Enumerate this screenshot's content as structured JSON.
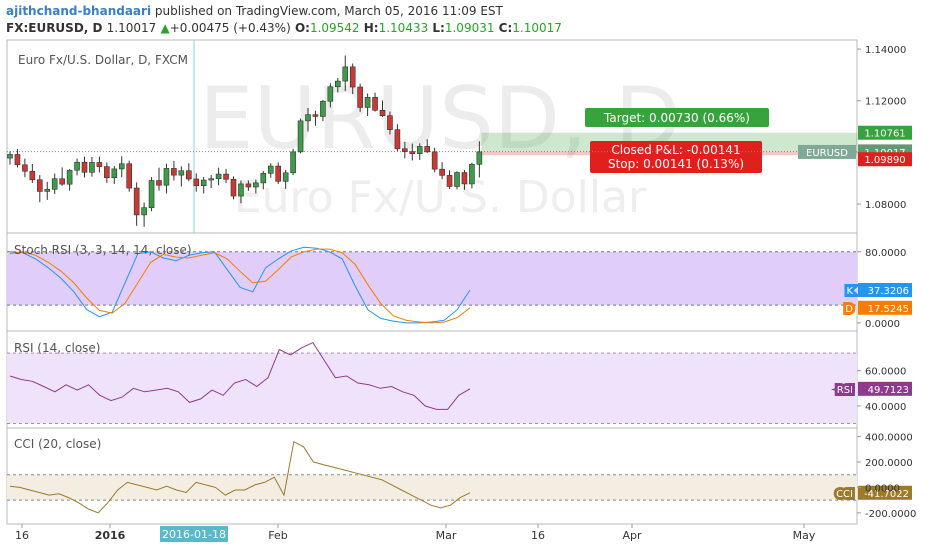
{
  "header": {
    "author": "ajithchand-bhandaari",
    "published": "published on TradingView.com, March 05, 2016 11:09 EST",
    "symbol": "FX:EURUSD, D",
    "last": "1.10017",
    "change_arrow": "▲",
    "change": "+0.00475 (+0.43%)",
    "o_label": "O:",
    "o_value": "1.09542",
    "h_label": "H:",
    "h_value": "1.10433",
    "l_label": "L:",
    "l_value": "1.09031",
    "c_label": "C:",
    "c_value": "1.10017"
  },
  "colors": {
    "bull": "#3d9b4a",
    "bear": "#c83a36",
    "stoch_k": "#4e9ee6",
    "stoch_d": "#f2764a",
    "rsi": "#8e3a8e",
    "cci": "#a8966a",
    "target": "#37a33d",
    "stop": "#e0201c",
    "band_fill": "#e4d3fb"
  },
  "chart_data": [
    {
      "type": "candlestick",
      "title": "Euro Fx/U.S. Dollar, D, FXCM",
      "watermark": "EURUSD, D",
      "watermark_sub": "Euro Fx/U.S. Dollar",
      "x_ticks": [
        "16",
        "2016",
        "2016-01-18",
        "Feb",
        "Mar",
        "16",
        "Apr",
        "May"
      ],
      "y_ticks": [
        "1.14000",
        "1.12000",
        "1.10000",
        "1.08000"
      ],
      "ylim": [
        1.0688,
        1.1435
      ],
      "price_labels": [
        {
          "text": "1.10761",
          "value": 1.10761,
          "color": "#37a33d"
        },
        {
          "text": "1.10031",
          "value": 1.10031,
          "color": "#444444"
        },
        {
          "text": "1.10017",
          "value": 1.10017,
          "color": "#5d9b72"
        },
        {
          "text": "1.09890",
          "value": 1.0989,
          "color": "#e0201c"
        }
      ],
      "symbol_label": "EURUSD",
      "position": {
        "entry": 1.10031,
        "target": 1.10761,
        "stop": 1.0989,
        "target_text": "Target: 0.00730 (0.66%)",
        "pnl_text": "Closed P&L: -0.00141",
        "stop_text": "Stop: 0.00141 (0.13%)"
      },
      "ohlc": [
        [
          1.0978,
          1.1004,
          1.0953,
          1.0992
        ],
        [
          1.0992,
          1.1013,
          1.0942,
          1.0952
        ],
        [
          1.0952,
          1.0976,
          1.0904,
          1.0927
        ],
        [
          1.0927,
          1.0955,
          1.0882,
          1.0894
        ],
        [
          1.0894,
          1.0912,
          1.0807,
          1.0849
        ],
        [
          1.0849,
          1.0886,
          1.0816,
          1.0857
        ],
        [
          1.0857,
          1.0918,
          1.0839,
          1.0898
        ],
        [
          1.0898,
          1.0942,
          1.0871,
          1.0877
        ],
        [
          1.0877,
          1.0935,
          1.0852,
          1.0931
        ],
        [
          1.0931,
          1.0976,
          1.0911,
          1.0962
        ],
        [
          1.0962,
          1.0983,
          1.0903,
          1.0923
        ],
        [
          1.0923,
          1.0982,
          1.0906,
          1.0961
        ],
        [
          1.0961,
          1.0984,
          1.0922,
          1.0945
        ],
        [
          1.0945,
          1.0961,
          1.0882,
          1.0902
        ],
        [
          1.0902,
          1.0947,
          1.0878,
          1.0936
        ],
        [
          1.0936,
          1.0985,
          1.0904,
          1.0956
        ],
        [
          1.0956,
          1.0968,
          1.0848,
          1.0862
        ],
        [
          1.0862,
          1.0884,
          1.0716,
          1.0758
        ],
        [
          1.0758,
          1.0806,
          1.0712,
          1.0786
        ],
        [
          1.0786,
          1.0904,
          1.0772,
          1.0891
        ],
        [
          1.0891,
          1.0941,
          1.0852,
          1.0873
        ],
        [
          1.0873,
          1.0956,
          1.0841,
          1.0938
        ],
        [
          1.0938,
          1.0967,
          1.0891,
          1.0912
        ],
        [
          1.0912,
          1.0946,
          1.0868,
          1.0929
        ],
        [
          1.0929,
          1.0958,
          1.0888,
          1.0897
        ],
        [
          1.0897,
          1.0919,
          1.0848,
          1.0871
        ],
        [
          1.0871,
          1.0905,
          1.0841,
          1.0893
        ],
        [
          1.0893,
          1.0912,
          1.0862,
          1.0898
        ],
        [
          1.0898,
          1.0941,
          1.0873,
          1.0916
        ],
        [
          1.0916,
          1.0936,
          1.0881,
          1.0896
        ],
        [
          1.0896,
          1.0907,
          1.0818,
          1.0831
        ],
        [
          1.0831,
          1.0891,
          1.0803,
          1.0878
        ],
        [
          1.0878,
          1.0891,
          1.0851,
          1.0866
        ],
        [
          1.0866,
          1.0895,
          1.0841,
          1.0882
        ],
        [
          1.0882,
          1.0928,
          1.0857,
          1.0919
        ],
        [
          1.0919,
          1.0958,
          1.0902,
          1.0947
        ],
        [
          1.0947,
          1.0961,
          1.0878,
          1.0888
        ],
        [
          1.0888,
          1.0932,
          1.0859,
          1.0921
        ],
        [
          1.0921,
          1.1014,
          1.0912,
          1.1002
        ],
        [
          1.1002,
          1.1131,
          1.0996,
          1.1122
        ],
        [
          1.1122,
          1.1172,
          1.1081,
          1.1146
        ],
        [
          1.1146,
          1.1161,
          1.1103,
          1.1139
        ],
        [
          1.1139,
          1.1203,
          1.1121,
          1.1198
        ],
        [
          1.1198,
          1.1268,
          1.1174,
          1.1254
        ],
        [
          1.1254,
          1.1288,
          1.1232,
          1.1276
        ],
        [
          1.1276,
          1.1375,
          1.1237,
          1.1331
        ],
        [
          1.1331,
          1.1344,
          1.1226,
          1.1253
        ],
        [
          1.1253,
          1.1266,
          1.1157,
          1.1174
        ],
        [
          1.1174,
          1.1228,
          1.1141,
          1.1213
        ],
        [
          1.1213,
          1.1231,
          1.1158,
          1.1163
        ],
        [
          1.1163,
          1.1201,
          1.1137,
          1.1142
        ],
        [
          1.1142,
          1.1158,
          1.1069,
          1.1088
        ],
        [
          1.1088,
          1.1109,
          1.1005,
          1.1014
        ],
        [
          1.1014,
          1.1041,
          1.0977,
          1.1003
        ],
        [
          1.1003,
          1.1034,
          1.0969,
          1.0995
        ],
        [
          1.0995,
          1.1035,
          1.0971,
          1.1023
        ],
        [
          1.1023,
          1.1051,
          1.0998,
          1.1002
        ],
        [
          1.1002,
          1.1018,
          1.0923,
          1.0935
        ],
        [
          1.0935,
          1.0962,
          1.0896,
          1.0911
        ],
        [
          1.0911,
          1.0931,
          1.0858,
          1.0868
        ],
        [
          1.0868,
          1.0927,
          1.0857,
          1.0922
        ],
        [
          1.0922,
          1.0932,
          1.0855,
          1.0878
        ],
        [
          1.0878,
          1.096,
          1.0861,
          1.0954
        ],
        [
          1.0954,
          1.1043,
          1.0903,
          1.1002
        ]
      ]
    },
    {
      "type": "line",
      "title": "Stoch RSI (3, 3, 14, 14, close)",
      "y_ticks": [
        "80.0000",
        "0.0000"
      ],
      "ylim": [
        -8,
        100
      ],
      "band": [
        20,
        80
      ],
      "series": [
        {
          "name": "K",
          "value_label": "37.3206",
          "values": [
            80,
            79,
            72,
            62,
            50,
            35,
            15,
            7,
            12,
            45,
            78,
            80,
            73,
            70,
            76,
            79,
            80,
            60,
            40,
            35,
            62,
            72,
            81,
            85,
            84,
            80,
            72,
            42,
            15,
            5,
            2,
            0,
            0,
            1,
            3,
            15,
            37
          ]
        },
        {
          "name": "D",
          "value_label": "17.5245",
          "values": [
            78,
            80,
            76,
            68,
            58,
            45,
            28,
            14,
            11,
            22,
            45,
            68,
            77,
            74,
            73,
            76,
            79,
            72,
            58,
            45,
            47,
            60,
            74,
            80,
            83,
            83,
            79,
            66,
            43,
            22,
            8,
            3,
            1,
            0,
            1,
            6,
            17
          ]
        }
      ]
    },
    {
      "type": "line",
      "title": "RSI (14, close)",
      "y_ticks": [
        "60.0000",
        "40.0000"
      ],
      "ylim": [
        28,
        82
      ],
      "band": [
        30,
        70
      ],
      "series": [
        {
          "name": "RSI",
          "value_label": "49.7123",
          "values": [
            57,
            55,
            54,
            51,
            48,
            52,
            49,
            52,
            46,
            43,
            45,
            50,
            48,
            49,
            50,
            48,
            42,
            44,
            49,
            46,
            53,
            55,
            51,
            56,
            72,
            69,
            73,
            76,
            66,
            56,
            57,
            53,
            52,
            50,
            51,
            48,
            46,
            40,
            38,
            38,
            46,
            49.7
          ]
        }
      ]
    },
    {
      "type": "line",
      "title": "CCI (20, close)",
      "y_ticks": [
        "400.0000",
        "200.0000",
        "0.0000",
        "-200.0000"
      ],
      "ylim": [
        -280,
        460
      ],
      "band": [
        -100,
        100
      ],
      "series": [
        {
          "name": "CCI",
          "value_label": "-41.7022",
          "values": [
            10,
            0,
            -20,
            -40,
            -60,
            -50,
            -80,
            -120,
            -170,
            -200,
            -120,
            -20,
            40,
            20,
            0,
            -20,
            10,
            -20,
            -40,
            40,
            20,
            0,
            -60,
            -20,
            -20,
            20,
            40,
            80,
            -60,
            360,
            320,
            200,
            180,
            160,
            140,
            120,
            100,
            80,
            60,
            20,
            -20,
            -60,
            -100,
            -140,
            -160,
            -140,
            -80,
            -42
          ]
        }
      ]
    }
  ]
}
